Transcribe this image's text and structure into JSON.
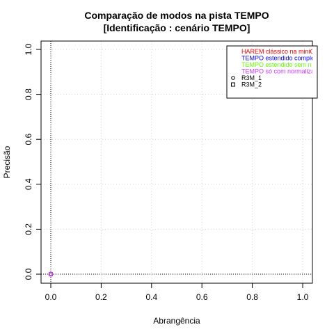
{
  "chart_data": {
    "type": "scatter",
    "title": "Comparação de modos na pista TEMPO",
    "subtitle": "[Identificação : cenário TEMPO]",
    "xlabel": "Abrangência",
    "ylabel": "Precisão",
    "xlim": [
      0,
      1
    ],
    "ylim": [
      0,
      1
    ],
    "xticks": [
      "0.0",
      "0.2",
      "0.4",
      "0.6",
      "0.8",
      "1.0"
    ],
    "yticks": [
      "0.0",
      "0.2",
      "0.4",
      "0.6",
      "0.8",
      "1.0"
    ],
    "grid": true,
    "legend_position": "top-right",
    "legend": {
      "colored_entries": [
        {
          "label": "HAREM clássico na miniC",
          "color": "#ff0000"
        },
        {
          "label": "TEMPO estendido comple",
          "color": "#0000ff"
        },
        {
          "label": "TEMPO estendido sem n",
          "color": "#66ff00"
        },
        {
          "label": "TEMPO só com normaliza",
          "color": "#cc33ff"
        }
      ],
      "marker_entries": [
        {
          "label": "R3M_1",
          "marker": "circle"
        },
        {
          "label": "R3M_2",
          "marker": "square"
        }
      ]
    },
    "points": [
      {
        "x": 0.0,
        "y": 0.0,
        "marker": "circle",
        "color": "#ff0000"
      },
      {
        "x": 0.0,
        "y": 0.0,
        "marker": "circle",
        "color": "#0000ff"
      },
      {
        "x": 0.0,
        "y": 0.0,
        "marker": "circle",
        "color": "#66ff00"
      },
      {
        "x": 0.0,
        "y": 0.0,
        "marker": "circle",
        "color": "#cc33ff"
      },
      {
        "x": 0.0,
        "y": 0.0,
        "marker": "square",
        "color": "#ff0000"
      },
      {
        "x": 0.0,
        "y": 0.0,
        "marker": "square",
        "color": "#0000ff"
      },
      {
        "x": 0.0,
        "y": 0.0,
        "marker": "square",
        "color": "#66ff00"
      },
      {
        "x": 0.0,
        "y": 0.0,
        "marker": "square",
        "color": "#cc33ff"
      }
    ],
    "reference_lines": [
      {
        "axis": "x",
        "value": 0.0,
        "style": "dotted"
      },
      {
        "axis": "y",
        "value": 0.0,
        "style": "dotted"
      }
    ]
  }
}
